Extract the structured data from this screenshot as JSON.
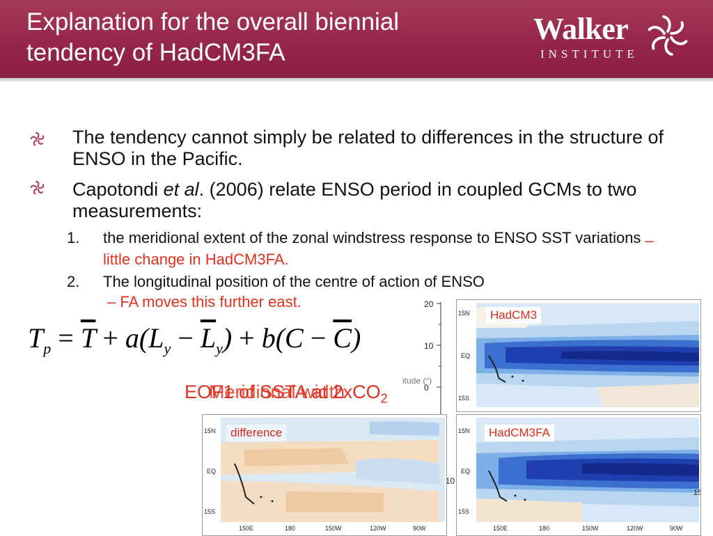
{
  "header": {
    "title_line1": "Explanation for the overall biennial",
    "title_line2": "tendency of HadCM3FA",
    "logo_word": "Walker",
    "logo_sub": "INSTITUTE"
  },
  "bullets": [
    {
      "text": "The tendency cannot simply be related to differences in the structure of ENSO in the Pacific."
    },
    {
      "pre": "Capotondi ",
      "em": "et al",
      "post": ". (2006) relate ENSO period in coupled GCMs to two measurements:"
    }
  ],
  "numbered": [
    {
      "num": "1.",
      "text": "the meridional extent of the zonal windstress response to ENSO SST variations",
      "note": "– little change in HadCM3FA."
    },
    {
      "num": "2.",
      "text": "The longitudinal position of the centre of action of ENSO",
      "note": "– FA moves this further east."
    }
  ],
  "equation": {
    "lhs": "T",
    "lhs_sub": "p",
    "eq": "=",
    "term1": "T",
    "plus1": "+",
    "a": "a(",
    "L": "L",
    "Lsub": "y",
    "minus": "−",
    "Lbar": "L",
    "Lbar_sub": "y",
    "close1": ")",
    "plus2": "+",
    "b": "b(",
    "C": "C",
    "minus2": "−",
    "Cbar": "C",
    "close2": ")"
  },
  "overlay": {
    "text1": "EOF1 of SSTA at 2xCO",
    "text1_sub": "2",
    "text2": "Meridional width"
  },
  "maps": [
    {
      "label": "HadCM3"
    },
    {
      "label": "difference"
    },
    {
      "label": "HadCM3FA"
    }
  ],
  "axes": {
    "lat": [
      "15N",
      "EQ",
      "15S"
    ],
    "lon": [
      "150E",
      "180",
      "150W",
      "120W",
      "90W"
    ],
    "plot_y": [
      "20",
      "10",
      "0"
    ],
    "plot_ylabel": "itude (°)",
    "plot_x": "010",
    "right_tick": "15"
  },
  "colors": {
    "header": "#96264a",
    "accent_red": "#e0301e",
    "deep_blue": "#1c3aa0",
    "pale_orange": "#f3d3a8"
  }
}
